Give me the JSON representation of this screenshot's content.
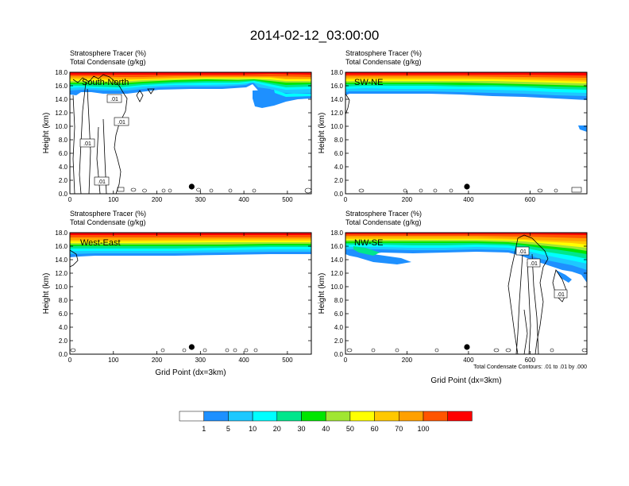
{
  "figure": {
    "title": "2014-02-12_03:00:00",
    "contour_note": "Total Condensate Contours: .01 to .01 by .000"
  },
  "colorbar": {
    "colors": [
      "#ffffff",
      "#1e90ff",
      "#1ec8ff",
      "#00ffff",
      "#00e68c",
      "#00e600",
      "#a0e632",
      "#ffff00",
      "#ffc800",
      "#ffa000",
      "#ff5500",
      "#ff0000"
    ],
    "labels": [
      "1",
      "5",
      "10",
      "20",
      "30",
      "40",
      "50",
      "60",
      "70",
      "100"
    ]
  },
  "panels": [
    {
      "label": "South-North",
      "line1": "Stratosphere Tracer   (%)",
      "line2": "Total Condensate   (g/kg)",
      "ylabel": "Height (km)",
      "xlabel": "",
      "xmax": 555,
      "xticks": [
        "0",
        "100",
        "200",
        "300",
        "400",
        "500"
      ],
      "yticks": [
        "0.0",
        "2.0",
        "4.0",
        "6.0",
        "8.0",
        "10.0",
        "12.0",
        "14.0",
        "16.0",
        "18.0"
      ],
      "dot_x": 280,
      "contour_labels": [
        ".01",
        ".01",
        ".01",
        ".01"
      ]
    },
    {
      "label": "SW-NE",
      "line1": "Stratosphere Tracer   (%)",
      "line2": "Total Condensate   (g/kg)",
      "ylabel": "Height (km)",
      "xlabel": "",
      "xmax": 785,
      "xticks": [
        "0",
        "200",
        "400",
        "600"
      ],
      "yticks": [
        "0.0",
        "2.0",
        "4.0",
        "6.0",
        "8.0",
        "10.0",
        "12.0",
        "14.0",
        "16.0",
        "18.0"
      ],
      "dot_x": 395,
      "contour_labels": []
    },
    {
      "label": "West-East",
      "line1": "Stratosphere Tracer   (%)",
      "line2": "Total Condensate   (g/kg)",
      "ylabel": "Height (km)",
      "xlabel": "Grid Point (dx=3km)",
      "xmax": 555,
      "xticks": [
        "0",
        "100",
        "200",
        "300",
        "400",
        "500"
      ],
      "yticks": [
        "0.0",
        "2.0",
        "4.0",
        "6.0",
        "8.0",
        "10.0",
        "12.0",
        "14.0",
        "16.0",
        "18.0"
      ],
      "dot_x": 280,
      "contour_labels": []
    },
    {
      "label": "NW-SE",
      "line1": "Stratosphere Tracer   (%)",
      "line2": "Total Condensate   (g/kg)",
      "ylabel": "Height (km)",
      "xlabel": "Grid Point (dx=3km)",
      "xmax": 785,
      "xticks": [
        "0",
        "200",
        "400",
        "600"
      ],
      "yticks": [
        "0.0",
        "2.0",
        "4.0",
        "6.0",
        "8.0",
        "10.0",
        "12.0",
        "14.0",
        "16.0",
        "18.0"
      ],
      "dot_x": 395,
      "contour_labels": [
        ".01",
        ".01",
        ".01"
      ]
    }
  ],
  "chart_data": [
    {
      "type": "heatmap",
      "title": "South-North",
      "xlabel": "",
      "ylabel": "Height (km)",
      "xlim": [
        0,
        555
      ],
      "ylim": [
        0,
        18
      ],
      "levels": [
        1,
        5,
        10,
        20,
        30,
        40,
        50,
        60,
        70,
        100
      ],
      "tracer_base_km": {
        "x": [
          0,
          10,
          30,
          60,
          90,
          120,
          150,
          200,
          260,
          320,
          400,
          430,
          460,
          500,
          555
        ],
        "y": [
          14.6,
          14.0,
          14.9,
          15.1,
          14.8,
          14.4,
          14.3,
          14.6,
          14.8,
          14.9,
          15.3,
          12.7,
          12.9,
          14.2,
          14.4
        ]
      },
      "marker_x": 280
    },
    {
      "type": "heatmap",
      "title": "SW-NE",
      "xlabel": "",
      "ylabel": "Height (km)",
      "xlim": [
        0,
        785
      ],
      "ylim": [
        0,
        18
      ],
      "levels": [
        1,
        5,
        10,
        20,
        30,
        40,
        50,
        60,
        70,
        100
      ],
      "tracer_base_km": {
        "x": [
          0,
          100,
          200,
          300,
          400,
          500,
          600,
          700,
          785
        ],
        "y": [
          15.0,
          15.1,
          15.2,
          15.2,
          15.1,
          15.0,
          14.8,
          14.4,
          14.0
        ]
      },
      "marker_x": 395
    },
    {
      "type": "heatmap",
      "title": "West-East",
      "xlabel": "Grid Point (dx=3km)",
      "ylabel": "Height (km)",
      "xlim": [
        0,
        555
      ],
      "ylim": [
        0,
        18
      ],
      "levels": [
        1,
        5,
        10,
        20,
        30,
        40,
        50,
        60,
        70,
        100
      ],
      "tracer_base_km": {
        "x": [
          0,
          100,
          200,
          300,
          400,
          500,
          555
        ],
        "y": [
          14.6,
          14.7,
          14.8,
          14.9,
          15.0,
          15.1,
          15.1
        ]
      },
      "marker_x": 280
    },
    {
      "type": "heatmap",
      "title": "NW-SE",
      "xlabel": "Grid Point (dx=3km)",
      "ylabel": "Height (km)",
      "xlim": [
        0,
        785
      ],
      "ylim": [
        0,
        18
      ],
      "levels": [
        1,
        5,
        10,
        20,
        30,
        40,
        50,
        60,
        70,
        100
      ],
      "tracer_base_km": {
        "x": [
          0,
          100,
          200,
          300,
          400,
          500,
          560,
          600,
          640,
          680,
          720,
          760,
          785
        ],
        "y": [
          14.9,
          13.7,
          14.3,
          14.6,
          14.9,
          15.0,
          14.9,
          14.4,
          13.3,
          12.7,
          12.3,
          11.9,
          12.5
        ]
      },
      "marker_x": 395
    }
  ]
}
